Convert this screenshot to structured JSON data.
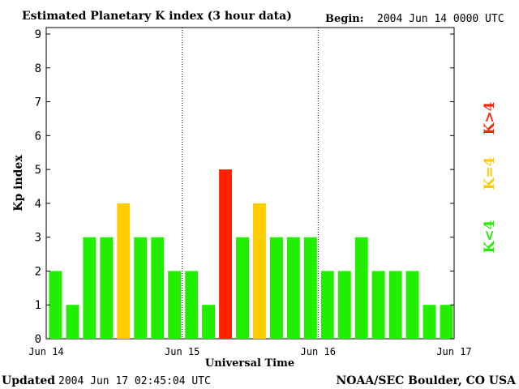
{
  "header": {
    "title": "Estimated Planetary K index (3 hour data)",
    "begin_label": "Begin:",
    "begin_value": "2004 Jun 14 0000 UTC"
  },
  "footer": {
    "updated_label": "Updated",
    "updated_value": "2004 Jun 17 02:45:04 UTC",
    "source": "NOAA/SEC Boulder, CO USA"
  },
  "legend": {
    "low": "K<4",
    "mid": "K=4",
    "high": "K>4"
  },
  "colors": {
    "low": "#22ee00",
    "mid": "#ffcc00",
    "high": "#ff2200",
    "frame": "#000000",
    "background": "#ffffff"
  },
  "chart_data": {
    "type": "bar",
    "title": "Estimated Planetary K index (3 hour data)",
    "xlabel": "Universal Time",
    "ylabel": "Kp index",
    "ylim": [
      0,
      9
    ],
    "yticks": [
      0,
      1,
      2,
      3,
      4,
      5,
      6,
      7,
      8,
      9
    ],
    "x_tick_labels": [
      "Jun 14",
      "Jun 15",
      "Jun 16",
      "Jun 17"
    ],
    "day_separators": "dotted vertical lines at Jun 15 and Jun 16",
    "bar_interval": "3 hours",
    "values": [
      2,
      1,
      3,
      3,
      4,
      3,
      3,
      2,
      2,
      1,
      5,
      3,
      4,
      3,
      3,
      3,
      2,
      2,
      3,
      2,
      2,
      2,
      1,
      1
    ],
    "color_rule": "green K<4, yellow K=4, red K>4",
    "grid": false
  }
}
